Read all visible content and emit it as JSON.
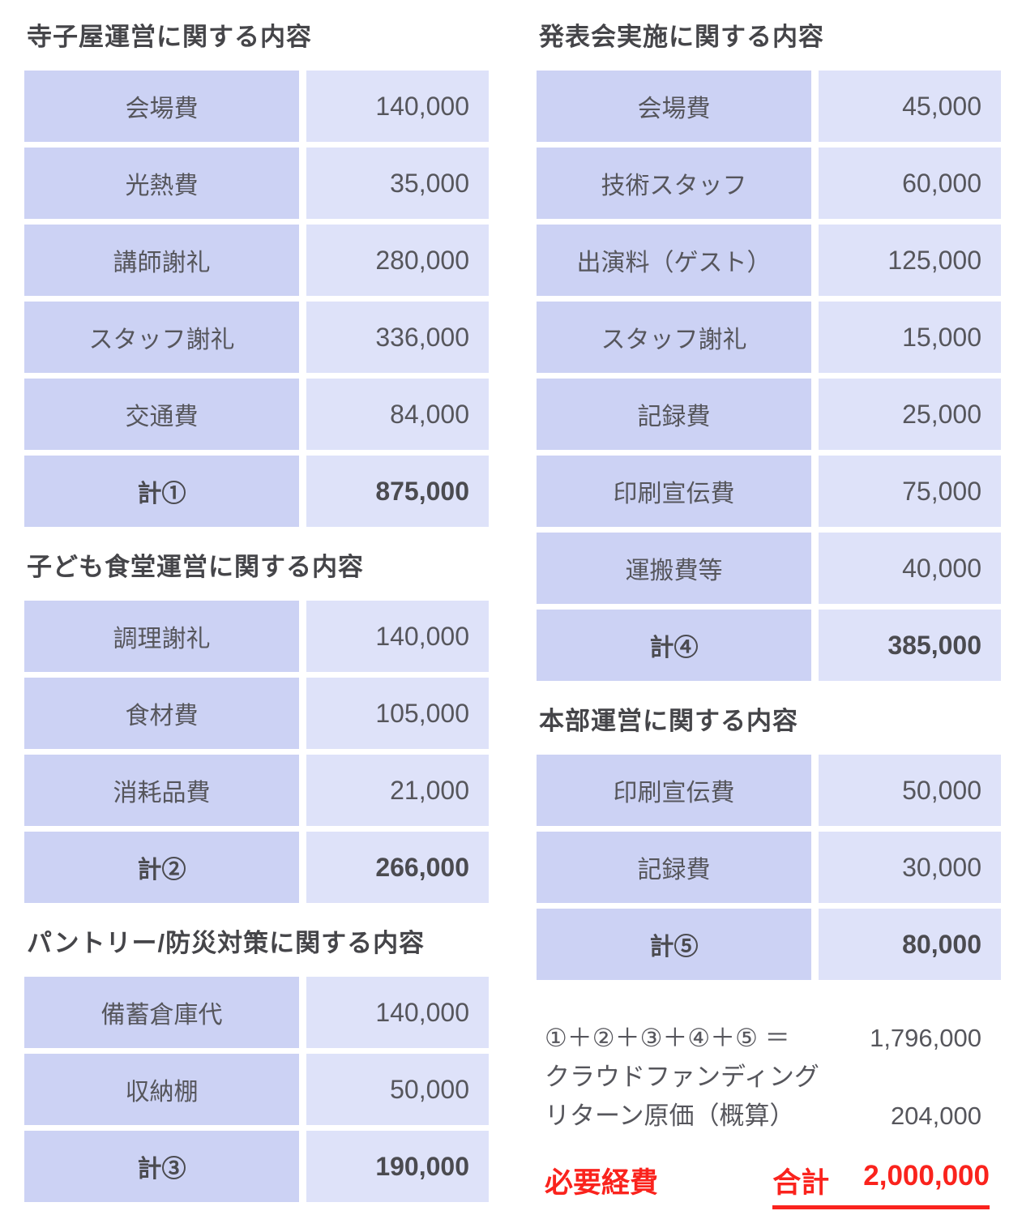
{
  "colors": {
    "label_cell_bg": "#ccd2f4",
    "value_cell_bg": "#dee2f9",
    "body_text": "#56565c",
    "title_text": "#454549",
    "accent_red": "#fa231d"
  },
  "sections": [
    {
      "id": "terakoya",
      "title": "寺子屋運営に関する内容",
      "rows": [
        {
          "label": "会場費",
          "value": "140,000"
        },
        {
          "label": "光熱費",
          "value": "35,000"
        },
        {
          "label": "講師謝礼",
          "value": "280,000"
        },
        {
          "label": "スタッフ謝礼",
          "value": "336,000"
        },
        {
          "label": "交通費",
          "value": "84,000"
        }
      ],
      "total": {
        "label": "計①",
        "value": "875,000"
      }
    },
    {
      "id": "kodomo-shokudo",
      "title": "子ども食堂運営に関する内容",
      "rows": [
        {
          "label": "調理謝礼",
          "value": "140,000"
        },
        {
          "label": "食材費",
          "value": "105,000"
        },
        {
          "label": "消耗品費",
          "value": "21,000"
        }
      ],
      "total": {
        "label": "計②",
        "value": "266,000"
      }
    },
    {
      "id": "pantry-bousai",
      "title": "パントリー/防災対策に関する内容",
      "rows": [
        {
          "label": "備蓄倉庫代",
          "value": "140,000"
        },
        {
          "label": "収納棚",
          "value": "50,000"
        }
      ],
      "total": {
        "label": "計③",
        "value": "190,000"
      }
    },
    {
      "id": "happyokai",
      "title": "発表会実施に関する内容",
      "rows": [
        {
          "label": "会場費",
          "value": "45,000"
        },
        {
          "label": "技術スタッフ",
          "value": "60,000"
        },
        {
          "label": "出演料（ゲスト）",
          "value": "125,000"
        },
        {
          "label": "スタッフ謝礼",
          "value": "15,000"
        },
        {
          "label": "記録費",
          "value": "25,000"
        },
        {
          "label": "印刷宣伝費",
          "value": "75,000"
        },
        {
          "label": "運搬費等",
          "value": "40,000"
        }
      ],
      "total": {
        "label": "計④",
        "value": "385,000"
      }
    },
    {
      "id": "honbu",
      "title": "本部運営に関する内容",
      "rows": [
        {
          "label": "印刷宣伝費",
          "value": "50,000"
        },
        {
          "label": "記録費",
          "value": "30,000"
        }
      ],
      "total": {
        "label": "計⑤",
        "value": "80,000"
      }
    }
  ],
  "summary": {
    "sum_formula": "①＋②＋③＋④＋⑤ ＝",
    "sum_value": "1,796,000",
    "crowdfunding_line": "クラウドファンディング",
    "return_cost_label": "リターン原価（概算）",
    "return_cost_value": "204,000",
    "required_label": "必要経費",
    "grand_total_label": "合計",
    "grand_total_value": "2,000,000"
  }
}
